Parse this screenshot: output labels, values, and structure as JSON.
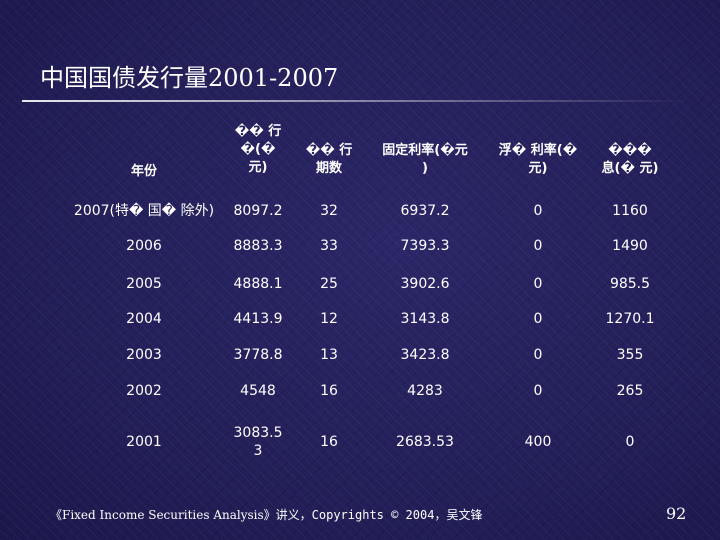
{
  "slide": {
    "title": "中国国债发行量2001-2007",
    "page_number": "92",
    "footer_book": "《Fixed Income Securities Analysis》",
    "footer_rest": "讲义，Copyrights © 2004，吴文锋"
  },
  "table": {
    "headers": [
      "年份",
      "�� 行\n�(�\n元)",
      "�� 行\n期数",
      "固定利率(�元\n)",
      "浮� 利率(�\n元)",
      "���\n息(� 元)"
    ],
    "rows": [
      [
        "2007(特� 国� 除外)",
        "8097.2",
        "32",
        "6937.2",
        "0",
        "1160"
      ],
      [
        "2006",
        "8883.3",
        "33",
        "7393.3",
        "0",
        "1490"
      ],
      [
        "2005",
        "4888.1",
        "25",
        "3902.6",
        "0",
        "985.5"
      ],
      [
        "2004",
        "4413.9",
        "12",
        "3143.8",
        "0",
        "1270.1"
      ],
      [
        "2003",
        "3778.8",
        "13",
        "3423.8",
        "0",
        "355"
      ],
      [
        "2002",
        "4548",
        "16",
        "4283",
        "0",
        "265"
      ],
      [
        "2001",
        "3083.5\n3",
        "16",
        "2683.53",
        "400",
        "0"
      ]
    ]
  }
}
